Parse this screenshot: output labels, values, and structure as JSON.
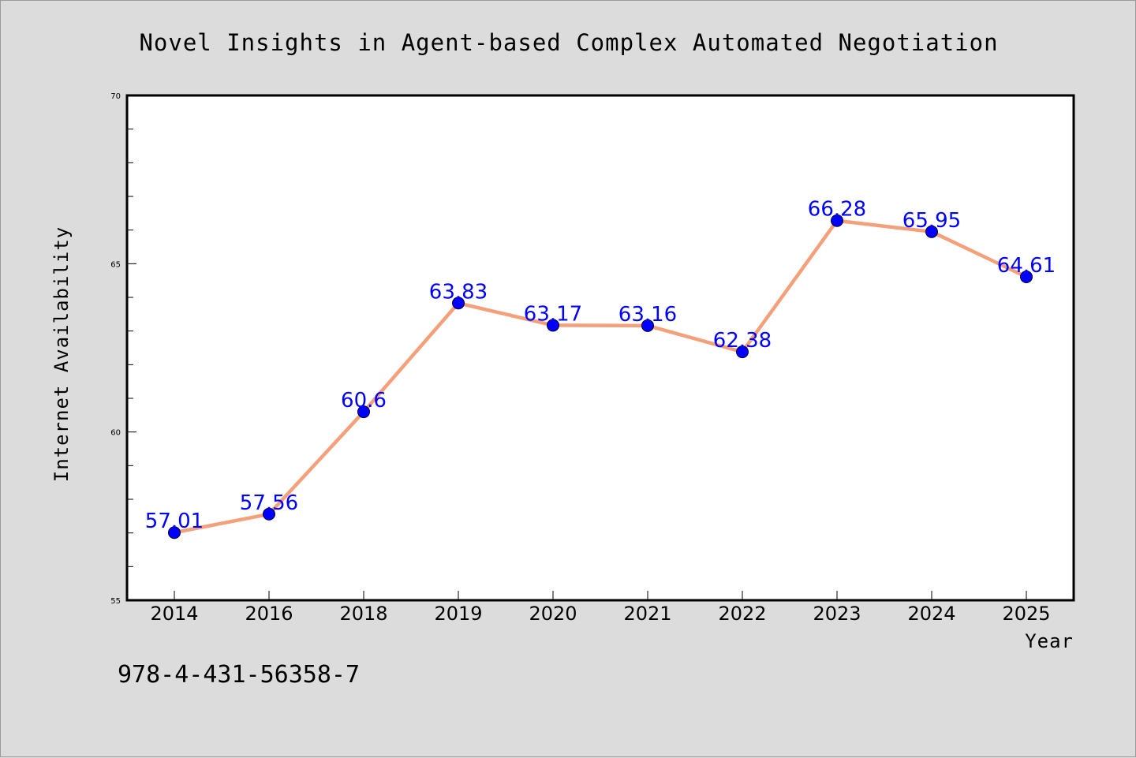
{
  "chart_data": {
    "type": "line",
    "title": "Novel Insights in Agent-based Complex Automated Negotiation",
    "xlabel": "Year",
    "ylabel": "Internet Availability",
    "categories": [
      "2014",
      "2016",
      "2018",
      "2019",
      "2020",
      "2021",
      "2022",
      "2023",
      "2024",
      "2025"
    ],
    "series": [
      {
        "values": [
          57.01,
          57.56,
          60.6,
          63.83,
          63.17,
          63.16,
          62.38,
          66.28,
          65.95,
          64.61
        ],
        "labels": [
          "57.01",
          "57.56",
          "60.6",
          "63.83",
          "63.17",
          "63.16",
          "62.38",
          "66.28",
          "65.95",
          "64.61"
        ],
        "line_color": "#f4a07a",
        "marker_color": "#0000ff"
      }
    ],
    "ylim": [
      55,
      70
    ],
    "yticks": [
      "55",
      "60",
      "65",
      "70"
    ],
    "grid": false,
    "legend": "none"
  },
  "annotation": {
    "isbn": "978-4-431-56358-7"
  }
}
